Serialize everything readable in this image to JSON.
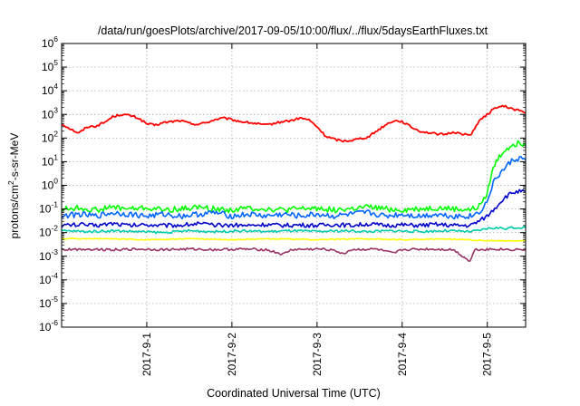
{
  "chart_data": {
    "type": "line",
    "title": "/data/run/goesPlots/archive/2017-09-05/10:00/flux/../flux/5daysEarthFluxes.txt",
    "xlabel": "Coordinated Universal Time (UTC)",
    "ylabel_parts": [
      "protons/cm",
      "2",
      "-s-sr-MeV"
    ],
    "x_range_days": [
      0,
      5.45
    ],
    "x_ticks": [
      {
        "day": 1,
        "label": "2017-9-1"
      },
      {
        "day": 2,
        "label": "2017-9-2"
      },
      {
        "day": 3,
        "label": "2017-9-3"
      },
      {
        "day": 4,
        "label": "2017-9-4"
      },
      {
        "day": 5,
        "label": "2017-9-5"
      }
    ],
    "y_scale": "log",
    "y_exponent_range": [
      -6,
      6
    ],
    "y_ticks": [
      {
        "exp": 6,
        "base": "10",
        "sup": "6"
      },
      {
        "exp": 5,
        "base": "10",
        "sup": "5"
      },
      {
        "exp": 4,
        "base": "10",
        "sup": "4"
      },
      {
        "exp": 3,
        "base": "10",
        "sup": "3"
      },
      {
        "exp": 2,
        "base": "10",
        "sup": "2"
      },
      {
        "exp": 1,
        "base": "10",
        "sup": "1"
      },
      {
        "exp": 0,
        "base": "10",
        "sup": "0"
      },
      {
        "exp": -1,
        "base": "10",
        "sup": "-1"
      },
      {
        "exp": -2,
        "base": "10",
        "sup": "-2"
      },
      {
        "exp": -3,
        "base": "10",
        "sup": "-3"
      },
      {
        "exp": -4,
        "base": "10",
        "sup": "-4"
      },
      {
        "exp": -5,
        "base": "10",
        "sup": "-5"
      },
      {
        "exp": -6,
        "base": "10",
        "sup": "-6"
      }
    ],
    "grid": true,
    "series": [
      {
        "color": "#ff0000",
        "points": [
          [
            0,
            400
          ],
          [
            0.1,
            250
          ],
          [
            0.2,
            160
          ],
          [
            0.3,
            300
          ],
          [
            0.4,
            320
          ],
          [
            0.5,
            450
          ],
          [
            0.6,
            800
          ],
          [
            0.7,
            1000
          ],
          [
            0.8,
            900
          ],
          [
            0.9,
            700
          ],
          [
            1.0,
            400
          ],
          [
            1.1,
            350
          ],
          [
            1.2,
            450
          ],
          [
            1.3,
            500
          ],
          [
            1.4,
            550
          ],
          [
            1.5,
            420
          ],
          [
            1.6,
            380
          ],
          [
            1.7,
            450
          ],
          [
            1.8,
            600
          ],
          [
            1.9,
            700
          ],
          [
            2.0,
            600
          ],
          [
            2.1,
            500
          ],
          [
            2.2,
            450
          ],
          [
            2.3,
            400
          ],
          [
            2.4,
            350
          ],
          [
            2.5,
            420
          ],
          [
            2.6,
            500
          ],
          [
            2.7,
            550
          ],
          [
            2.8,
            700
          ],
          [
            2.9,
            600
          ],
          [
            3.0,
            300
          ],
          [
            3.1,
            120
          ],
          [
            3.2,
            90
          ],
          [
            3.3,
            75
          ],
          [
            3.4,
            80
          ],
          [
            3.5,
            95
          ],
          [
            3.6,
            110
          ],
          [
            3.7,
            200
          ],
          [
            3.8,
            350
          ],
          [
            3.9,
            550
          ],
          [
            4.0,
            500
          ],
          [
            4.1,
            300
          ],
          [
            4.2,
            200
          ],
          [
            4.3,
            170
          ],
          [
            4.4,
            150
          ],
          [
            4.5,
            140
          ],
          [
            4.6,
            180
          ],
          [
            4.7,
            150
          ],
          [
            4.8,
            130
          ],
          [
            4.9,
            500
          ],
          [
            5.0,
            1000
          ],
          [
            5.1,
            2000
          ],
          [
            5.2,
            2200
          ],
          [
            5.3,
            1700
          ],
          [
            5.4,
            1400
          ],
          [
            5.45,
            1100
          ]
        ]
      },
      {
        "color": "#00ff00",
        "points": [
          [
            0,
            0.1
          ],
          [
            0.2,
            0.11
          ],
          [
            0.4,
            0.09
          ],
          [
            0.6,
            0.12
          ],
          [
            0.8,
            0.1
          ],
          [
            1.0,
            0.11
          ],
          [
            1.2,
            0.09
          ],
          [
            1.4,
            0.1
          ],
          [
            1.6,
            0.12
          ],
          [
            1.8,
            0.1
          ],
          [
            2.0,
            0.09
          ],
          [
            2.2,
            0.11
          ],
          [
            2.4,
            0.1
          ],
          [
            2.6,
            0.09
          ],
          [
            2.8,
            0.1
          ],
          [
            3.0,
            0.11
          ],
          [
            3.2,
            0.09
          ],
          [
            3.4,
            0.1
          ],
          [
            3.6,
            0.12
          ],
          [
            3.8,
            0.1
          ],
          [
            4.0,
            0.09
          ],
          [
            4.2,
            0.1
          ],
          [
            4.4,
            0.11
          ],
          [
            4.6,
            0.1
          ],
          [
            4.8,
            0.09
          ],
          [
            4.9,
            0.12
          ],
          [
            5.0,
            0.5
          ],
          [
            5.05,
            3
          ],
          [
            5.1,
            10
          ],
          [
            5.2,
            30
          ],
          [
            5.3,
            55
          ],
          [
            5.4,
            60
          ],
          [
            5.45,
            55
          ]
        ]
      },
      {
        "color": "#0066ff",
        "points": [
          [
            0,
            0.05
          ],
          [
            0.2,
            0.06
          ],
          [
            0.4,
            0.05
          ],
          [
            0.6,
            0.07
          ],
          [
            0.8,
            0.06
          ],
          [
            1.0,
            0.05
          ],
          [
            1.2,
            0.06
          ],
          [
            1.4,
            0.05
          ],
          [
            1.6,
            0.06
          ],
          [
            1.8,
            0.07
          ],
          [
            2.0,
            0.05
          ],
          [
            2.2,
            0.06
          ],
          [
            2.4,
            0.05
          ],
          [
            2.6,
            0.06
          ],
          [
            2.8,
            0.05
          ],
          [
            3.0,
            0.06
          ],
          [
            3.2,
            0.05
          ],
          [
            3.4,
            0.06
          ],
          [
            3.6,
            0.07
          ],
          [
            3.8,
            0.05
          ],
          [
            4.0,
            0.06
          ],
          [
            4.2,
            0.05
          ],
          [
            4.4,
            0.06
          ],
          [
            4.6,
            0.05
          ],
          [
            4.8,
            0.05
          ],
          [
            4.9,
            0.07
          ],
          [
            5.0,
            0.2
          ],
          [
            5.05,
            0.8
          ],
          [
            5.1,
            2
          ],
          [
            5.2,
            5
          ],
          [
            5.3,
            12
          ],
          [
            5.4,
            14
          ],
          [
            5.45,
            12
          ]
        ]
      },
      {
        "color": "#0000cc",
        "points": [
          [
            0,
            0.02
          ],
          [
            0.2,
            0.022
          ],
          [
            0.4,
            0.02
          ],
          [
            0.6,
            0.025
          ],
          [
            0.8,
            0.02
          ],
          [
            1.0,
            0.022
          ],
          [
            1.2,
            0.02
          ],
          [
            1.4,
            0.021
          ],
          [
            1.6,
            0.024
          ],
          [
            1.8,
            0.02
          ],
          [
            2.0,
            0.021
          ],
          [
            2.2,
            0.02
          ],
          [
            2.4,
            0.022
          ],
          [
            2.6,
            0.02
          ],
          [
            2.8,
            0.021
          ],
          [
            3.0,
            0.02
          ],
          [
            3.2,
            0.022
          ],
          [
            3.4,
            0.02
          ],
          [
            3.6,
            0.023
          ],
          [
            3.8,
            0.02
          ],
          [
            4.0,
            0.021
          ],
          [
            4.2,
            0.02
          ],
          [
            4.4,
            0.022
          ],
          [
            4.6,
            0.02
          ],
          [
            4.8,
            0.02
          ],
          [
            4.9,
            0.03
          ],
          [
            5.0,
            0.05
          ],
          [
            5.1,
            0.12
          ],
          [
            5.2,
            0.3
          ],
          [
            5.3,
            0.5
          ],
          [
            5.4,
            0.55
          ],
          [
            5.45,
            0.5
          ]
        ]
      },
      {
        "color": "#00ccaa",
        "points": [
          [
            0,
            0.012
          ],
          [
            0.3,
            0.011
          ],
          [
            0.6,
            0.012
          ],
          [
            0.9,
            0.011
          ],
          [
            1.2,
            0.01
          ],
          [
            1.5,
            0.012
          ],
          [
            1.8,
            0.011
          ],
          [
            2.1,
            0.012
          ],
          [
            2.4,
            0.011
          ],
          [
            2.7,
            0.012
          ],
          [
            3.0,
            0.011
          ],
          [
            3.3,
            0.012
          ],
          [
            3.6,
            0.011
          ],
          [
            3.9,
            0.012
          ],
          [
            4.2,
            0.011
          ],
          [
            4.5,
            0.012
          ],
          [
            4.8,
            0.011
          ],
          [
            4.9,
            0.012
          ],
          [
            5.0,
            0.015
          ],
          [
            5.1,
            0.016
          ],
          [
            5.2,
            0.015
          ],
          [
            5.3,
            0.016
          ],
          [
            5.45,
            0.017
          ]
        ]
      },
      {
        "color": "#ffff00",
        "points": [
          [
            0,
            0.0055
          ],
          [
            0.5,
            0.0055
          ],
          [
            1.0,
            0.005
          ],
          [
            1.5,
            0.0055
          ],
          [
            2.0,
            0.005
          ],
          [
            2.5,
            0.0055
          ],
          [
            3.0,
            0.005
          ],
          [
            3.5,
            0.0055
          ],
          [
            4.0,
            0.005
          ],
          [
            4.5,
            0.0055
          ],
          [
            5.0,
            0.0045
          ],
          [
            5.45,
            0.0045
          ]
        ]
      },
      {
        "color": "#993366",
        "points": [
          [
            0,
            0.0019
          ],
          [
            0.3,
            0.002
          ],
          [
            0.6,
            0.0019
          ],
          [
            0.9,
            0.002
          ],
          [
            1.2,
            0.0019
          ],
          [
            1.5,
            0.002
          ],
          [
            1.8,
            0.0019
          ],
          [
            2.1,
            0.002
          ],
          [
            2.4,
            0.0019
          ],
          [
            2.6,
            0.0012
          ],
          [
            2.7,
            0.0019
          ],
          [
            3.0,
            0.002
          ],
          [
            3.2,
            0.0019
          ],
          [
            3.3,
            0.0012
          ],
          [
            3.4,
            0.0019
          ],
          [
            3.7,
            0.002
          ],
          [
            3.9,
            0.0013
          ],
          [
            4.0,
            0.0019
          ],
          [
            4.3,
            0.002
          ],
          [
            4.6,
            0.0019
          ],
          [
            4.8,
            0.0006
          ],
          [
            4.85,
            0.0019
          ],
          [
            5.1,
            0.002
          ],
          [
            5.3,
            0.0019
          ],
          [
            5.45,
            0.002
          ]
        ]
      }
    ]
  }
}
